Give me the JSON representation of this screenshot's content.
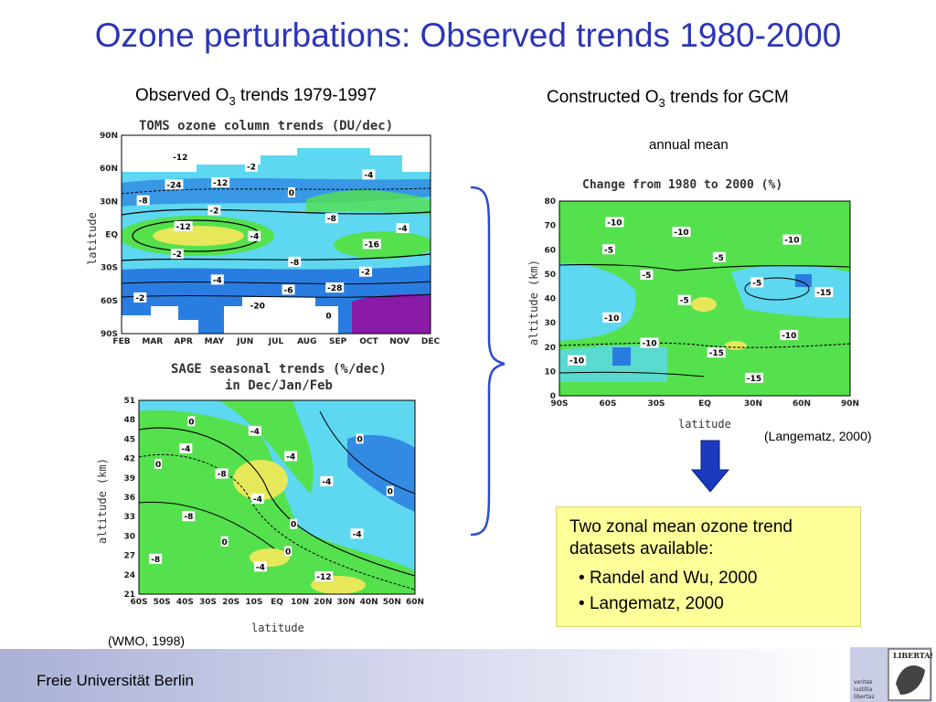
{
  "slide": {
    "title": "Ozone perturbations: Observed trends 1980-2000",
    "left_heading": {
      "pre": "Observed O",
      "sub": "3",
      "post": " trends 1979-1997"
    },
    "right_heading": {
      "pre": "Constructed O",
      "sub": "3",
      "post": " trends for GCM"
    },
    "annual_mean": "annual mean",
    "cite_wmo": "(WMO, 1998)",
    "cite_langematz": "(Langematz, 2000)",
    "info_box": {
      "text": "Two zonal mean ozone trend datasets available:",
      "items": [
        "Randel and Wu, 2000",
        "Langematz, 2000"
      ]
    },
    "footer": "Freie Universität Berlin",
    "logo_lines": [
      "veritas",
      "iustitia",
      "libertas"
    ],
    "logo_banner": "LIBERTAS"
  },
  "chart_data": [
    {
      "type": "heatmap",
      "title": "TOMS ozone column trends (DU/dec)",
      "xlabel": "",
      "ylabel": "latitude",
      "x_ticks": [
        "FEB",
        "MAR",
        "APR",
        "MAY",
        "JUN",
        "JUL",
        "AUG",
        "SEP",
        "OCT",
        "NOV",
        "DEC"
      ],
      "y_ticks": [
        "90N",
        "60N",
        "30N",
        "EQ",
        "30S",
        "60S",
        "90S"
      ],
      "contour_labels": [
        "-24",
        "-6",
        "-4",
        "-2",
        "-2",
        "-2",
        "0",
        "-2",
        "0",
        "-2",
        "-4",
        "-4",
        "-4",
        "-8",
        "-12",
        "-8",
        "-8",
        "-20",
        "-16",
        "-12",
        "-28",
        "-12"
      ]
    },
    {
      "type": "heatmap",
      "title": "SAGE seasonal trends (%/dec) in Dec/Jan/Feb",
      "xlabel": "latitude",
      "ylabel": "altitude (km)",
      "x_ticks": [
        "60S",
        "50S",
        "40S",
        "30S",
        "20S",
        "10S",
        "EQ",
        "10N",
        "20N",
        "30N",
        "40N",
        "50N",
        "60N"
      ],
      "y_ticks": [
        "51",
        "48",
        "45",
        "42",
        "39",
        "36",
        "33",
        "30",
        "27",
        "24",
        "21"
      ],
      "contour_labels": [
        "-4",
        "0",
        "0",
        "-4",
        "-4",
        "-8",
        "-12",
        "-8",
        "-4",
        "-8",
        "-4",
        "0",
        "0",
        "-4",
        "0",
        "0",
        "0",
        "-4"
      ]
    },
    {
      "type": "heatmap",
      "title": "Change from 1980 to 2000 (%)",
      "xlabel": "latitude",
      "ylabel": "altitude (km)",
      "x_ticks": [
        "90S",
        "60S",
        "30S",
        "EQ",
        "30N",
        "60N",
        "90N"
      ],
      "y_ticks": [
        "80",
        "70",
        "60",
        "50",
        "40",
        "30",
        "20",
        "10",
        "0"
      ],
      "contour_labels": [
        "-5",
        "-15",
        "-15",
        "-10",
        "-10",
        "-5",
        "-15",
        "-10",
        "-5",
        "-10",
        "-5",
        "-10",
        "-10",
        "-5",
        "-10"
      ]
    }
  ],
  "colors": {
    "title": "#2b35b8",
    "cyan": "#5dd8f0",
    "blue": "#2a7de0",
    "green": "#55e04e",
    "yellow": "#e6e85a",
    "purple": "#8a1aa8",
    "arrow": "#1a3bbf",
    "info_bg": "#ffff99"
  }
}
